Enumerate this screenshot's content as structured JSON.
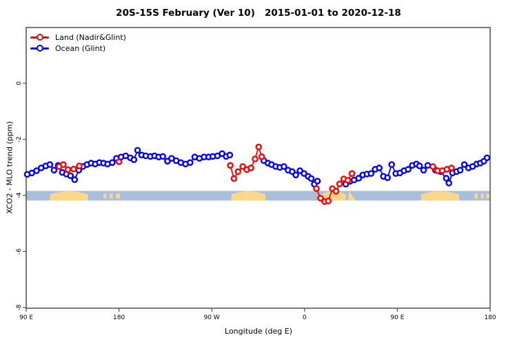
{
  "chart_data": {
    "type": "line",
    "title": "20S-15S February (Ver 10)   2015-01-01 to 2020-12-18",
    "xlabel": "Longitude (deg E)",
    "ylabel": "XCO2 - MLO trend (ppm)",
    "xlim": [
      90,
      540
    ],
    "ylim": [
      -8,
      2
    ],
    "grid": false,
    "legend_position": "top-left",
    "x_ticks": [
      {
        "lon": 90,
        "label": "90 E"
      },
      {
        "lon": 180,
        "label": "180"
      },
      {
        "lon": 270,
        "label": "90 W"
      },
      {
        "lon": 360,
        "label": "0"
      },
      {
        "lon": 450,
        "label": "90 E"
      },
      {
        "lon": 540,
        "label": "180"
      }
    ],
    "y_ticks": [
      {
        "v": 0,
        "label": "0"
      },
      {
        "v": -2,
        "label": "-2"
      },
      {
        "v": -4,
        "label": "-4"
      },
      {
        "v": -6,
        "label": "-6"
      },
      {
        "v": -8,
        "label": "-8"
      }
    ],
    "series": [
      {
        "name": "Land (Nadir&Glint)",
        "color": "#ff0000",
        "segments": [
          [
            [
              122,
              -2.97
            ],
            [
              126,
              -2.9
            ],
            [
              130.5,
              -3.08
            ],
            [
              136,
              -3.06
            ],
            [
              141.5,
              -2.95
            ]
          ],
          [
            [
              180,
              -2.8
            ]
          ],
          [
            [
              288,
              -2.93
            ],
            [
              291.5,
              -3.4
            ],
            [
              295.5,
              -3.15
            ],
            [
              300,
              -2.97
            ],
            [
              304,
              -3.08
            ],
            [
              308,
              -3.02
            ],
            [
              312,
              -2.7
            ],
            [
              315.5,
              -2.27
            ],
            [
              318.5,
              -2.62
            ]
          ],
          [
            [
              371.5,
              -3.76
            ],
            [
              375.5,
              -4.1
            ],
            [
              379.5,
              -4.22
            ],
            [
              383,
              -4.2
            ],
            [
              387,
              -3.76
            ],
            [
              390.5,
              -3.85
            ],
            [
              394,
              -3.59
            ],
            [
              398,
              -3.41
            ],
            [
              402,
              -3.46
            ],
            [
              406,
              -3.22
            ]
          ],
          [
            [
              484.5,
              -2.97
            ],
            [
              489,
              -3.12
            ],
            [
              493.5,
              -3.12
            ],
            [
              498,
              -3.07
            ],
            [
              502.5,
              -3.02
            ]
          ]
        ]
      },
      {
        "name": "Ocean (Glint)",
        "color": "#0000ff",
        "segments": [
          [
            [
              91,
              -3.25
            ],
            [
              95.5,
              -3.2
            ],
            [
              100,
              -3.12
            ],
            [
              104.5,
              -3.02
            ],
            [
              109,
              -2.95
            ],
            [
              113,
              -2.9
            ],
            [
              117,
              -3.1
            ],
            [
              121,
              -2.93
            ],
            [
              125,
              -3.18
            ],
            [
              129,
              -3.24
            ],
            [
              133,
              -3.3
            ],
            [
              137,
              -3.44
            ],
            [
              141,
              -3.1
            ],
            [
              145,
              -2.97
            ],
            [
              149,
              -2.9
            ],
            [
              153,
              -2.85
            ],
            [
              157,
              -2.88
            ],
            [
              161,
              -2.83
            ],
            [
              165,
              -2.85
            ],
            [
              169,
              -2.88
            ],
            [
              173.5,
              -2.83
            ],
            [
              177.5,
              -2.68
            ],
            [
              182,
              -2.63
            ],
            [
              186.5,
              -2.59
            ],
            [
              191,
              -2.66
            ],
            [
              194.5,
              -2.73
            ],
            [
              198,
              -2.39
            ],
            [
              202,
              -2.56
            ],
            [
              206,
              -2.59
            ],
            [
              210.5,
              -2.61
            ],
            [
              214.5,
              -2.59
            ],
            [
              218.5,
              -2.63
            ],
            [
              222.5,
              -2.61
            ],
            [
              227,
              -2.78
            ],
            [
              231,
              -2.68
            ],
            [
              235.5,
              -2.76
            ],
            [
              240,
              -2.83
            ],
            [
              244.5,
              -2.88
            ],
            [
              249,
              -2.83
            ],
            [
              253.5,
              -2.63
            ],
            [
              258,
              -2.68
            ],
            [
              262.5,
              -2.63
            ],
            [
              267,
              -2.63
            ],
            [
              271,
              -2.61
            ],
            [
              275.5,
              -2.59
            ],
            [
              280,
              -2.51
            ],
            [
              284,
              -2.61
            ],
            [
              287.5,
              -2.56
            ]
          ],
          [
            [
              320.5,
              -2.76
            ],
            [
              324.5,
              -2.85
            ],
            [
              328,
              -2.9
            ],
            [
              332,
              -2.97
            ],
            [
              336,
              -3.0
            ],
            [
              340,
              -2.97
            ],
            [
              344,
              -3.1
            ],
            [
              348,
              -3.15
            ],
            [
              351.5,
              -3.27
            ],
            [
              355.5,
              -3.12
            ],
            [
              359.5,
              -3.22
            ],
            [
              363.5,
              -3.32
            ],
            [
              366.5,
              -3.4
            ],
            [
              369.5,
              -3.6
            ],
            [
              372.5,
              -3.49
            ]
          ],
          [
            [
              400,
              -3.6
            ],
            [
              404,
              -3.5
            ],
            [
              408,
              -3.45
            ],
            [
              412.5,
              -3.39
            ],
            [
              416.5,
              -3.27
            ],
            [
              420.5,
              -3.24
            ],
            [
              424.5,
              -3.22
            ],
            [
              428.5,
              -3.07
            ],
            [
              432.5,
              -3.02
            ],
            [
              436.5,
              -3.32
            ],
            [
              440.5,
              -3.37
            ],
            [
              444.5,
              -2.9
            ],
            [
              448.5,
              -3.22
            ],
            [
              452.5,
              -3.2
            ],
            [
              456.5,
              -3.12
            ],
            [
              460.5,
              -3.07
            ],
            [
              464.5,
              -2.93
            ],
            [
              468.5,
              -2.88
            ],
            [
              471.5,
              -2.95
            ],
            [
              475.5,
              -3.1
            ],
            [
              479.5,
              -2.93
            ],
            [
              487,
              -3.1
            ],
            [
              492,
              -3.15
            ],
            [
              497.5,
              -3.39
            ],
            [
              500,
              -3.56
            ],
            [
              503.5,
              -3.2
            ],
            [
              507.5,
              -3.15
            ],
            [
              511,
              -3.1
            ],
            [
              515,
              -2.9
            ],
            [
              519,
              -3.02
            ],
            [
              523,
              -2.97
            ],
            [
              527,
              -2.88
            ],
            [
              530.5,
              -2.85
            ],
            [
              534,
              -2.78
            ],
            [
              537,
              -2.66
            ]
          ]
        ]
      }
    ],
    "land_ocean_band": {
      "y_center": -4,
      "ocean_color": "#a8bedb",
      "land_color": "#fbd78c",
      "land_patches": [
        {
          "from": 113,
          "to": 150,
          "kind": "mound"
        },
        {
          "from": 165,
          "to": 168,
          "kind": "speck"
        },
        {
          "from": 171,
          "to": 174,
          "kind": "speck"
        },
        {
          "from": 177,
          "to": 181,
          "kind": "speck"
        },
        {
          "from": 289,
          "to": 322,
          "kind": "mound"
        },
        {
          "from": 376,
          "to": 400,
          "kind": "mound"
        },
        {
          "from": 402,
          "to": 410,
          "kind": "tri"
        },
        {
          "from": 473,
          "to": 510,
          "kind": "mound"
        },
        {
          "from": 525,
          "to": 528,
          "kind": "speck"
        },
        {
          "from": 531,
          "to": 534,
          "kind": "speck"
        },
        {
          "from": 536,
          "to": 540,
          "kind": "speck"
        }
      ]
    }
  }
}
